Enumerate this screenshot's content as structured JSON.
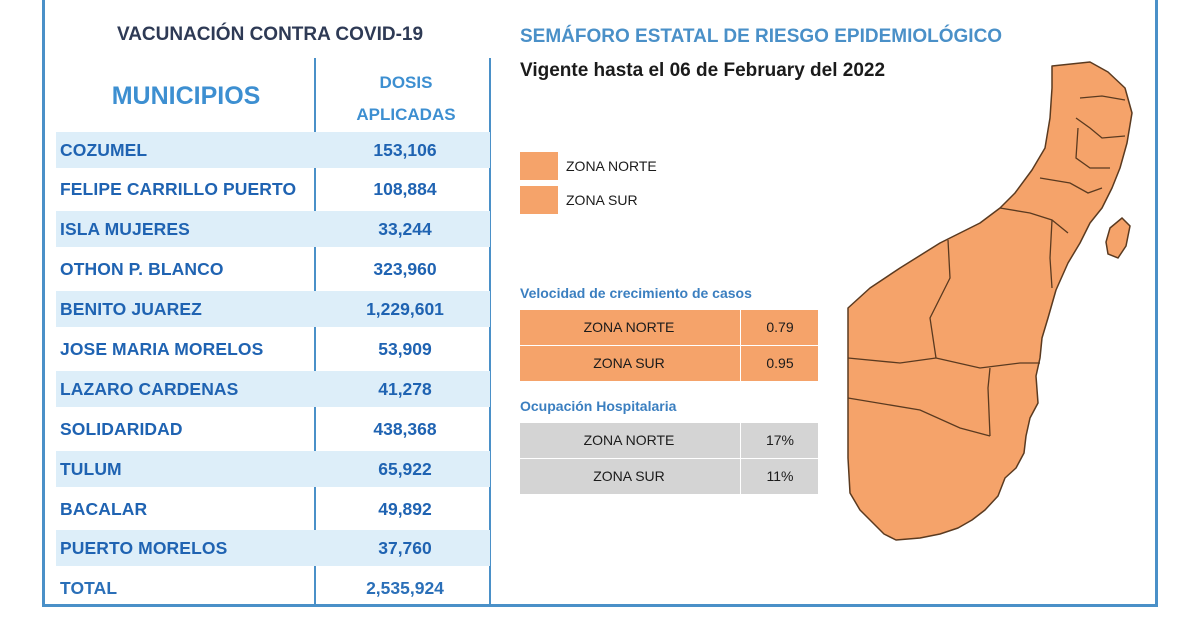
{
  "left": {
    "title": "VACUNACIÓN CONTRA COVID-19",
    "col_municipios": "MUNICIPIOS",
    "col_dosis_1": "DOSIS",
    "col_dosis_2": "APLICADAS",
    "rows": [
      {
        "name": "COZUMEL",
        "value": "153,106"
      },
      {
        "name": "FELIPE CARRILLO PUERTO",
        "value": "108,884"
      },
      {
        "name": "ISLA MUJERES",
        "value": "33,244"
      },
      {
        "name": "OTHON P. BLANCO",
        "value": "323,960"
      },
      {
        "name": "BENITO JUAREZ",
        "value": "1,229,601"
      },
      {
        "name": "JOSE MARIA MORELOS",
        "value": "53,909"
      },
      {
        "name": "LAZARO CARDENAS",
        "value": "41,278"
      },
      {
        "name": "SOLIDARIDAD",
        "value": "438,368"
      },
      {
        "name": "TULUM",
        "value": "65,922"
      },
      {
        "name": "BACALAR",
        "value": "49,892"
      },
      {
        "name": "PUERTO MORELOS",
        "value": "37,760"
      },
      {
        "name": "TOTAL",
        "value": "2,535,924"
      }
    ]
  },
  "right": {
    "title": "SEMÁFORO ESTATAL DE RIESGO EPIDEMIOLÓGICO",
    "vigente": "Vigente hasta el 06 de February del 2022",
    "legend": [
      {
        "label": "ZONA NORTE",
        "color": "#f5a36a"
      },
      {
        "label": "ZONA SUR",
        "color": "#f5a36a"
      }
    ],
    "velocidad": {
      "heading": "Velocidad de crecimiento de casos",
      "rows": [
        {
          "zona": "ZONA NORTE",
          "valor": "0.79"
        },
        {
          "zona": "ZONA SUR",
          "valor": "0.95"
        }
      ]
    },
    "ocupacion": {
      "heading": "Ocupación Hospitalaria",
      "rows": [
        {
          "zona": "ZONA NORTE",
          "valor": "17%"
        },
        {
          "zona": "ZONA SUR",
          "valor": "11%"
        }
      ]
    },
    "map_fill": "#f5a36a"
  }
}
